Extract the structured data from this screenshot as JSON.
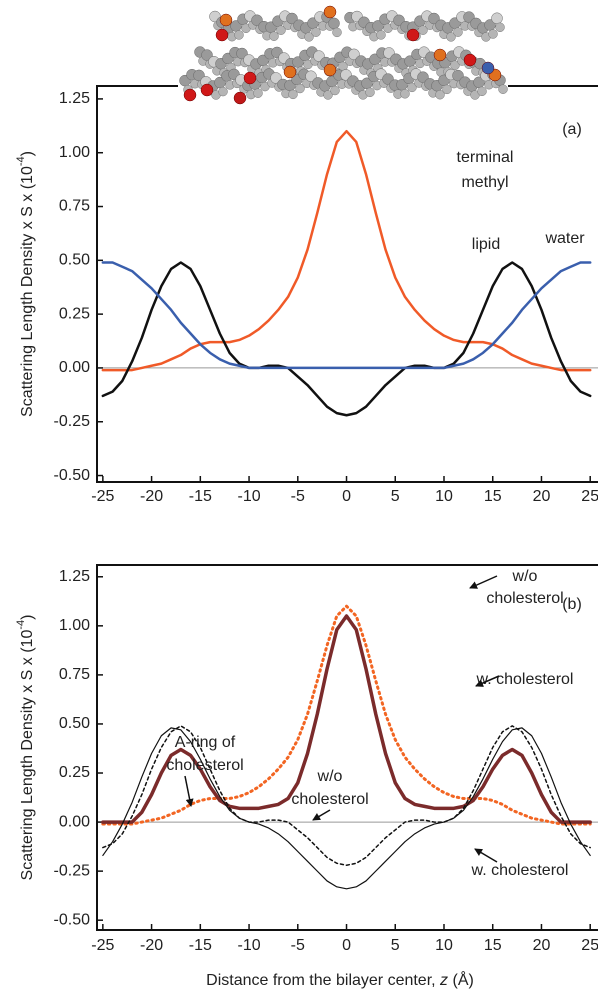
{
  "chart_data": [
    {
      "type": "line",
      "panel_label": "(a)",
      "ylabel": [
        "Scattering Length Density x S x (10",
        "-4",
        ")"
      ],
      "xlim": [
        -25.6,
        25.8
      ],
      "ylim": [
        -0.53,
        1.31
      ],
      "xticks": [
        -25,
        -20,
        -15,
        -10,
        -5,
        0,
        5,
        10,
        15,
        20,
        25
      ],
      "yticks": [
        {
          "value": 1.25,
          "label": "1.25"
        },
        {
          "value": 1,
          "label": "1.00"
        },
        0.75,
        {
          "value": 0.5,
          "label": "0.50"
        },
        0.25,
        {
          "value": 0,
          "label": "0.00"
        },
        -0.25,
        {
          "value": -0.5,
          "label": "-0.50"
        }
      ],
      "x": [
        -25,
        -24,
        -23,
        -22,
        -21,
        -20,
        -19,
        -18,
        -17,
        -16,
        -15,
        -14,
        -13,
        -12,
        -11,
        -10,
        -9,
        -8,
        -7,
        -6,
        -5,
        -4,
        -3,
        -2,
        -1,
        0,
        1,
        2,
        3,
        4,
        5,
        6,
        7,
        8,
        9,
        10,
        11,
        12,
        13,
        14,
        15,
        16,
        17,
        18,
        19,
        20,
        21,
        22,
        23,
        24,
        25
      ],
      "series": [
        {
          "name": [
            "terminal",
            "methyl"
          ],
          "color": "#f05a28",
          "width": 2.5,
          "style": "solid",
          "values": [
            -0.01,
            -0.01,
            -0.01,
            -0.01,
            0,
            0.01,
            0.02,
            0.04,
            0.06,
            0.09,
            0.11,
            0.12,
            0.12,
            0.12,
            0.13,
            0.15,
            0.18,
            0.22,
            0.27,
            0.33,
            0.42,
            0.55,
            0.72,
            0.9,
            1.05,
            1.1,
            1.05,
            0.9,
            0.72,
            0.55,
            0.42,
            0.33,
            0.27,
            0.22,
            0.18,
            0.15,
            0.13,
            0.12,
            0.12,
            0.12,
            0.11,
            0.09,
            0.06,
            0.04,
            0.02,
            0.01,
            0,
            -0.01,
            -0.01,
            -0.01,
            -0.01
          ]
        },
        {
          "name": [
            "lipid"
          ],
          "color": "#111111",
          "width": 2.5,
          "style": "solid",
          "values": [
            -0.13,
            -0.11,
            -0.06,
            0.03,
            0.14,
            0.27,
            0.38,
            0.46,
            0.49,
            0.46,
            0.38,
            0.27,
            0.16,
            0.07,
            0.02,
            0,
            0,
            0.01,
            0.01,
            0,
            -0.04,
            -0.08,
            -0.13,
            -0.18,
            -0.21,
            -0.22,
            -0.21,
            -0.18,
            -0.13,
            -0.08,
            -0.04,
            0,
            0.01,
            0.01,
            0,
            0,
            0.02,
            0.07,
            0.16,
            0.27,
            0.38,
            0.46,
            0.49,
            0.46,
            0.38,
            0.27,
            0.14,
            0.03,
            -0.06,
            -0.11,
            -0.13
          ]
        },
        {
          "name": [
            "water"
          ],
          "color": "#3a5fad",
          "width": 2.5,
          "style": "solid",
          "values": [
            0.49,
            0.49,
            0.47,
            0.45,
            0.41,
            0.37,
            0.32,
            0.27,
            0.21,
            0.16,
            0.11,
            0.07,
            0.04,
            0.02,
            0.01,
            0,
            0,
            0,
            0,
            0,
            0,
            0,
            0,
            0,
            0,
            0,
            0,
            0,
            0,
            0,
            0,
            0,
            0,
            0,
            0,
            0,
            0.01,
            0.02,
            0.04,
            0.07,
            0.11,
            0.16,
            0.21,
            0.27,
            0.32,
            0.37,
            0.41,
            0.45,
            0.47,
            0.49,
            0.49
          ]
        }
      ]
    },
    {
      "type": "line",
      "panel_label": "(b)",
      "ylabel": [
        "Scattering Length Density x S x (10",
        "-4",
        ")"
      ],
      "xlabel": [
        "Distance from the bilayer center, ",
        "z",
        " (Å)"
      ],
      "annotations": [
        [
          "A-ring of",
          "cholesterol"
        ]
      ],
      "xlim": [
        -25.6,
        25.8
      ],
      "ylim": [
        -0.55,
        1.31
      ],
      "xticks": [
        -25,
        -20,
        -15,
        -10,
        -5,
        0,
        5,
        10,
        15,
        20,
        25
      ],
      "yticks": [
        {
          "value": 1.25,
          "label": "1.25"
        },
        {
          "value": 1,
          "label": "1.00"
        },
        0.75,
        {
          "value": 0.5,
          "label": "0.50"
        },
        0.25,
        {
          "value": 0,
          "label": "0.00"
        },
        -0.25,
        {
          "value": -0.5,
          "label": "-0.50"
        }
      ],
      "x": [
        -25,
        -24,
        -23,
        -22,
        -21,
        -20,
        -19,
        -18,
        -17,
        -16,
        -15,
        -14,
        -13,
        -12,
        -11,
        -10,
        -9,
        -8,
        -7,
        -6,
        -5,
        -4,
        -3,
        -2,
        -1,
        0,
        1,
        2,
        3,
        4,
        5,
        6,
        7,
        8,
        9,
        10,
        11,
        12,
        13,
        14,
        15,
        16,
        17,
        18,
        19,
        20,
        21,
        22,
        23,
        24,
        25
      ],
      "series": [
        {
          "name": [
            "w/o",
            "cholesterol"
          ],
          "color": "#f26522",
          "width": 3,
          "style": "dotted",
          "values": [
            -0.01,
            -0.01,
            -0.01,
            -0.01,
            0,
            0.01,
            0.02,
            0.04,
            0.06,
            0.09,
            0.11,
            0.12,
            0.12,
            0.12,
            0.13,
            0.15,
            0.18,
            0.22,
            0.27,
            0.33,
            0.42,
            0.55,
            0.72,
            0.9,
            1.05,
            1.1,
            1.05,
            0.9,
            0.72,
            0.55,
            0.42,
            0.33,
            0.27,
            0.22,
            0.18,
            0.15,
            0.13,
            0.12,
            0.12,
            0.12,
            0.11,
            0.09,
            0.06,
            0.04,
            0.02,
            0.01,
            0,
            -0.01,
            -0.01,
            -0.01,
            -0.01
          ]
        },
        {
          "name": [
            "w. cholesterol"
          ],
          "color": "#7b2b2b",
          "width": 3.5,
          "style": "solid",
          "values": [
            0,
            0,
            0,
            0,
            0.05,
            0.14,
            0.25,
            0.34,
            0.37,
            0.34,
            0.27,
            0.18,
            0.11,
            0.08,
            0.07,
            0.07,
            0.07,
            0.08,
            0.09,
            0.12,
            0.2,
            0.35,
            0.55,
            0.78,
            0.98,
            1.05,
            0.98,
            0.78,
            0.55,
            0.35,
            0.2,
            0.12,
            0.09,
            0.08,
            0.07,
            0.07,
            0.07,
            0.08,
            0.11,
            0.18,
            0.27,
            0.34,
            0.37,
            0.34,
            0.25,
            0.14,
            0.05,
            0,
            0,
            0,
            0
          ]
        },
        {
          "name": [
            "w/o",
            "cholesterol"
          ],
          "color": "#111111",
          "width": 1.5,
          "style": "dashed",
          "values": [
            -0.13,
            -0.11,
            -0.06,
            0.03,
            0.14,
            0.27,
            0.38,
            0.46,
            0.49,
            0.46,
            0.38,
            0.27,
            0.16,
            0.07,
            0.02,
            0,
            0,
            0.01,
            0.01,
            0,
            -0.04,
            -0.08,
            -0.13,
            -0.18,
            -0.21,
            -0.22,
            -0.21,
            -0.18,
            -0.13,
            -0.08,
            -0.04,
            0,
            0.01,
            0.01,
            0,
            0,
            0.02,
            0.07,
            0.16,
            0.27,
            0.38,
            0.46,
            0.49,
            0.46,
            0.38,
            0.27,
            0.14,
            0.03,
            -0.06,
            -0.11,
            -0.13
          ]
        },
        {
          "name": [
            "w. cholesterol"
          ],
          "color": "#111111",
          "width": 1.2,
          "style": "solid",
          "values": [
            -0.17,
            -0.1,
            -0.01,
            0.1,
            0.23,
            0.35,
            0.44,
            0.48,
            0.47,
            0.41,
            0.32,
            0.22,
            0.13,
            0.06,
            0.02,
            0,
            -0.01,
            -0.03,
            -0.06,
            -0.1,
            -0.15,
            -0.2,
            -0.25,
            -0.3,
            -0.33,
            -0.34,
            -0.33,
            -0.3,
            -0.25,
            -0.2,
            -0.15,
            -0.1,
            -0.06,
            -0.03,
            -0.01,
            0,
            0.02,
            0.06,
            0.13,
            0.22,
            0.32,
            0.41,
            0.47,
            0.48,
            0.44,
            0.35,
            0.23,
            0.1,
            -0.01,
            -0.1,
            -0.17
          ]
        }
      ]
    }
  ]
}
